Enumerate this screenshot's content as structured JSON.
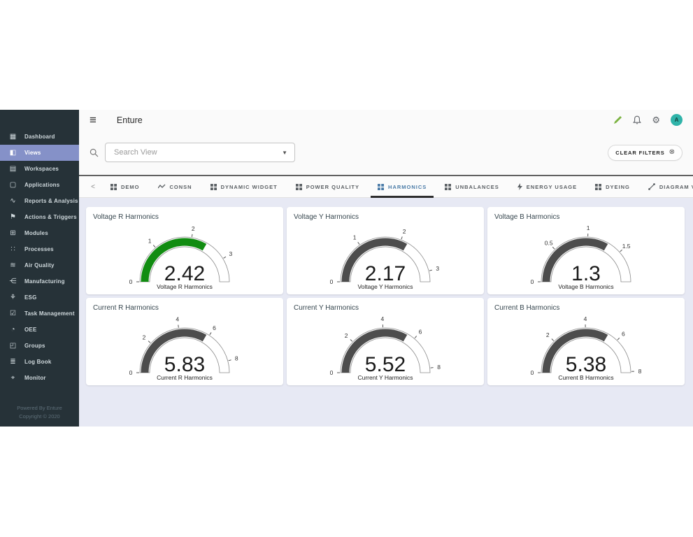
{
  "app": {
    "title": "Enture"
  },
  "topbar": {
    "icons": [
      "edit-pencil",
      "notifications-bell",
      "settings-gear"
    ],
    "avatar_initial": "A"
  },
  "sidebar": {
    "items": [
      {
        "label": "Dashboard",
        "icon": "dashboard-grid",
        "selected": false
      },
      {
        "label": "Views",
        "icon": "views-carousel",
        "selected": true
      },
      {
        "label": "Workspaces",
        "icon": "workspaces-folder",
        "selected": false
      },
      {
        "label": "Applications",
        "icon": "applications-window",
        "selected": false
      },
      {
        "label": "Reports & Analysis",
        "icon": "reports-chart",
        "selected": false
      },
      {
        "label": "Actions & Triggers",
        "icon": "actions-alert",
        "selected": false
      },
      {
        "label": "Modules",
        "icon": "modules-table",
        "selected": false
      },
      {
        "label": "Processes",
        "icon": "processes-frame",
        "selected": false
      },
      {
        "label": "Air Quality",
        "icon": "air-quality",
        "selected": false
      },
      {
        "label": "Manufacturing",
        "icon": "manufacturing-flow",
        "selected": false
      },
      {
        "label": "ESG",
        "icon": "esg-plant",
        "selected": false
      },
      {
        "label": "Task Management",
        "icon": "task-calendar",
        "selected": false
      },
      {
        "label": "OEE",
        "icon": "oee-gauge",
        "selected": false
      },
      {
        "label": "Groups",
        "icon": "groups-photo",
        "selected": false
      },
      {
        "label": "Log Book",
        "icon": "logbook-book",
        "selected": false
      },
      {
        "label": "Monitor",
        "icon": "monitor-network",
        "selected": false
      }
    ],
    "footer_line1": "Powered By Enture",
    "footer_line2": "Copyright © 2020"
  },
  "search": {
    "placeholder": "Search View"
  },
  "filters": {
    "clear_label": "CLEAR FILTERS"
  },
  "tabs": {
    "items": [
      {
        "label": "DEMO",
        "icon": "grid",
        "active": false
      },
      {
        "label": "CONSN",
        "icon": "wave",
        "active": false
      },
      {
        "label": "DYNAMIC WIDGET",
        "icon": "grid",
        "active": false
      },
      {
        "label": "POWER QUALITY",
        "icon": "grid",
        "active": false
      },
      {
        "label": "HARMONICS",
        "icon": "grid",
        "active": true
      },
      {
        "label": "UNBALANCES",
        "icon": "grid",
        "active": false
      },
      {
        "label": "ENERGY USAGE",
        "icon": "bolt",
        "active": false
      },
      {
        "label": "DYEING",
        "icon": "grid",
        "active": false
      },
      {
        "label": "DIAGRAM VIEW",
        "icon": "trend",
        "active": false
      },
      {
        "label": "",
        "icon": "grid",
        "active": false
      }
    ]
  },
  "chart_data": [
    {
      "type": "gauge",
      "title": "Voltage R Harmonics",
      "label": "Voltage R Harmonics",
      "value": 2.42,
      "display": "2.42",
      "min": 0,
      "max": 3.63,
      "ticks": [
        0,
        1,
        2,
        3
      ],
      "color": "#118c11"
    },
    {
      "type": "gauge",
      "title": "Voltage Y Harmonics",
      "label": "Voltage Y Harmonics",
      "value": 2.17,
      "display": "2.17",
      "min": 0,
      "max": 3.255,
      "ticks": [
        0,
        1,
        2,
        3
      ],
      "color": "#4d4d4d"
    },
    {
      "type": "gauge",
      "title": "Voltage B Harmonics",
      "label": "Voltage B Harmonics",
      "value": 1.3,
      "display": "1.3",
      "min": 0,
      "max": 1.95,
      "ticks": [
        0,
        0.5,
        1,
        1.5
      ],
      "color": "#4d4d4d"
    },
    {
      "type": "gauge",
      "title": "Current R Harmonics",
      "label": "Current R Harmonics",
      "value": 5.83,
      "display": "5.83",
      "min": 0,
      "max": 8.745,
      "ticks": [
        0,
        2,
        4,
        6,
        8
      ],
      "color": "#4d4d4d"
    },
    {
      "type": "gauge",
      "title": "Current Y Harmonics",
      "label": "Current Y Harmonics",
      "value": 5.52,
      "display": "5.52",
      "min": 0,
      "max": 8.28,
      "ticks": [
        0,
        2,
        4,
        6,
        8
      ],
      "color": "#4d4d4d"
    },
    {
      "type": "gauge",
      "title": "Current B Harmonics",
      "label": "Current B Harmonics",
      "value": 5.38,
      "display": "5.38",
      "min": 0,
      "max": 8.07,
      "ticks": [
        0,
        2,
        4,
        6,
        8
      ],
      "color": "#4d4d4d"
    }
  ],
  "colors": {
    "sidebar_bg": "#263238",
    "sidebar_selected": "#8591c8",
    "content_bg": "#e7e9f4",
    "active_tab": "#4a7ba7",
    "gauge_green": "#118c11",
    "gauge_gray": "#4d4d4d",
    "avatar_bg": "#2fb3a9"
  }
}
